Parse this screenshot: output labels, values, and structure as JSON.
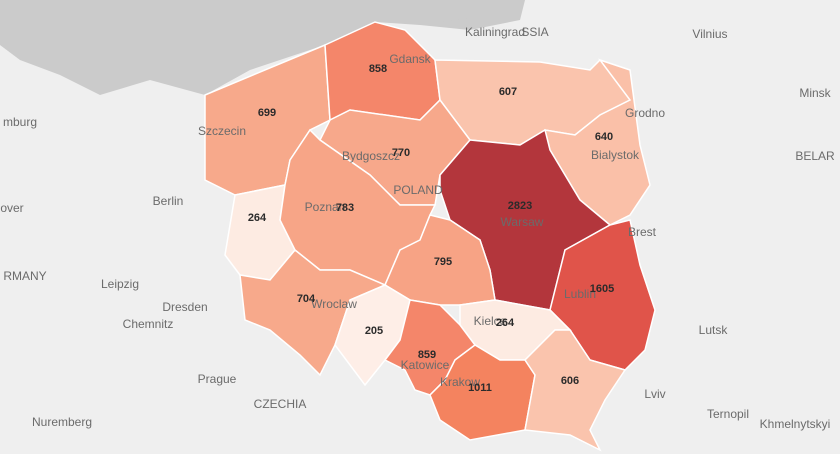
{
  "map": {
    "regions": [
      {
        "value": 699,
        "color": "#f7a98b"
      },
      {
        "value": 858,
        "color": "#f4866a"
      },
      {
        "value": 607,
        "color": "#fac4ad"
      },
      {
        "value": 640,
        "color": "#fac0a8"
      },
      {
        "value": 770,
        "color": "#f7a88b"
      },
      {
        "value": 2823,
        "color": "#b3363c"
      },
      {
        "value": 264,
        "color": "#fdebe2"
      },
      {
        "value": 783,
        "color": "#f7a587"
      },
      {
        "value": 795,
        "color": "#f7a385"
      },
      {
        "value": 1605,
        "color": "#e0544a"
      },
      {
        "value": 704,
        "color": "#f7a98b"
      },
      {
        "value": 205,
        "color": "#feeee7"
      },
      {
        "value": 264,
        "color": "#fdebe2"
      },
      {
        "value": 859,
        "color": "#f4866a"
      },
      {
        "value": 1011,
        "color": "#f4835f"
      },
      {
        "value": 606,
        "color": "#fac4ad"
      }
    ],
    "places": [
      "Kaliningrad",
      "SSIA",
      "Vilnius",
      "Minsk",
      "BELAR",
      "mburg",
      "Szczecin",
      "Gdansk",
      "Grodno",
      "Bialystok",
      "Bydgoszcz",
      "POLAND",
      "Poznan",
      "Warsaw",
      "Brest",
      "Berlin",
      "over",
      "RMANY",
      "Leipzig",
      "Dresden",
      "Chemnitz",
      "Wroclaw",
      "Lublin",
      "Lutsk",
      "Katowice",
      "Krakow",
      "Kielce",
      "Prague",
      "CZECHIA",
      "Lviv",
      "Ternopil",
      "Khmelnytskyi",
      "Nuremberg"
    ]
  }
}
